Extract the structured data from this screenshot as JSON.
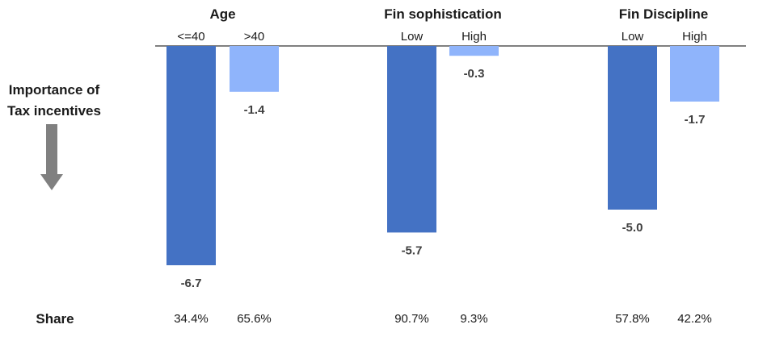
{
  "y_axis_label_lines": [
    "Importance of",
    "Tax incentives"
  ],
  "share_label": "Share",
  "colors": {
    "dark": "#4472c4",
    "light": "#8fb4fb",
    "arrow": "#808080",
    "baseline": "#000000"
  },
  "chart_data": {
    "type": "bar",
    "groups": [
      {
        "title": "Age",
        "categories": [
          "<=40",
          ">40"
        ],
        "values": [
          -6.7,
          -1.4
        ],
        "value_labels": [
          "-6.7",
          "-1.4"
        ],
        "shares": [
          "34.4%",
          "65.6%"
        ]
      },
      {
        "title": "Fin sophistication",
        "categories": [
          "Low",
          "High"
        ],
        "values": [
          -5.7,
          -0.3
        ],
        "value_labels": [
          "-5.7",
          "-0.3"
        ],
        "shares": [
          "90.7%",
          "9.3%"
        ]
      },
      {
        "title": "Fin Discipline",
        "categories": [
          "Low",
          "High"
        ],
        "values": [
          -5.0,
          -1.7
        ],
        "value_labels": [
          "-5.0",
          "-1.7"
        ],
        "shares": [
          "57.8%",
          "42.2%"
        ]
      }
    ],
    "ylim": [
      -6.7,
      0
    ],
    "grid": false,
    "legend": "none"
  }
}
